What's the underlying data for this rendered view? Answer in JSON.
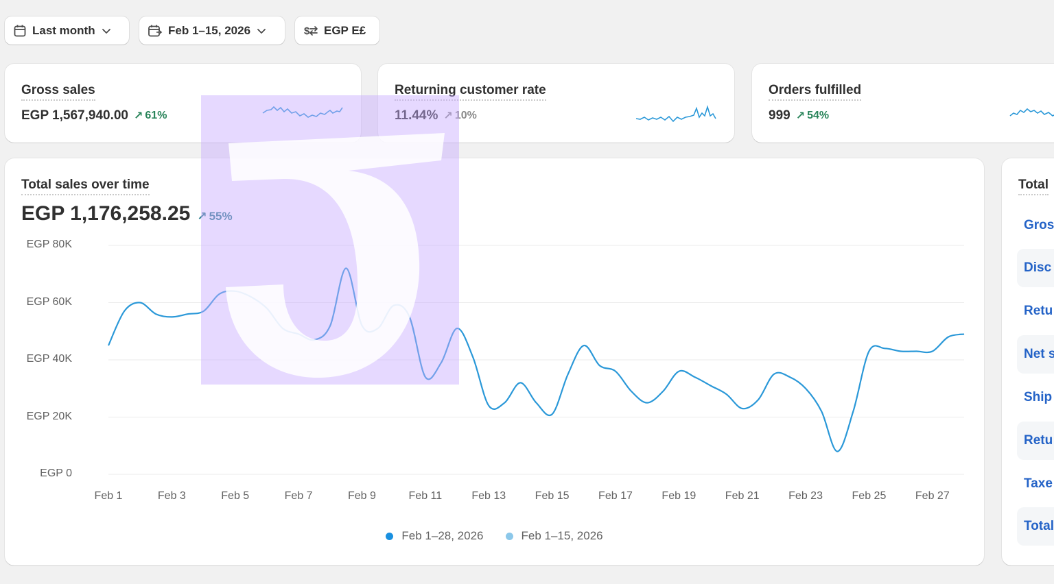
{
  "toolbar": {
    "period_label": "Last month",
    "compare_label": "Feb 1–15, 2026",
    "currency_label": "EGP E£"
  },
  "metrics": [
    {
      "title": "Gross sales",
      "value": "EGP 1,567,940.00",
      "trend": "61%",
      "trend_style": "up"
    },
    {
      "title": "Returning customer rate",
      "value": "11.44%",
      "trend": "10%",
      "trend_style": "muted"
    },
    {
      "title": "Orders fulfilled",
      "value": "999",
      "trend": "54%",
      "trend_style": "up"
    }
  ],
  "sales_chart": {
    "title": "Total sales over time",
    "value": "EGP 1,176,258.25",
    "trend": "55%",
    "legend": [
      {
        "label": "Feb 1–28, 2026",
        "color": "#1990e0"
      },
      {
        "label": "Feb 1–15, 2026",
        "color": "#8cc8ea"
      }
    ]
  },
  "chart_data": {
    "type": "line",
    "title": "Total sales over time",
    "y_tick_labels": [
      "EGP 80K",
      "EGP 60K",
      "EGP 40K",
      "EGP 20K",
      "EGP 0"
    ],
    "x_tick_labels": [
      "Feb 1",
      "Feb 3",
      "Feb 5",
      "Feb 7",
      "Feb 9",
      "Feb 11",
      "Feb 13",
      "Feb 15",
      "Feb 17",
      "Feb 19",
      "Feb 21",
      "Feb 23",
      "Feb 25",
      "Feb 27"
    ],
    "ylim": [
      0,
      80000
    ],
    "grid": true,
    "legend_placement": "bottom",
    "series": [
      {
        "name": "Feb 1–28, 2026",
        "color": "#2a98d8",
        "x": [
          1,
          1.5,
          2,
          2.5,
          3,
          3.5,
          4,
          4.5,
          5,
          5.5,
          6,
          6.5,
          7,
          7.5,
          8,
          8.5,
          9,
          9.5,
          10,
          10.5,
          11,
          11.5,
          12,
          12.5,
          13,
          13.5,
          14,
          14.5,
          15,
          15.5,
          16,
          16.5,
          17,
          17.5,
          18,
          18.5,
          19,
          19.5,
          20,
          20.5,
          21,
          21.5,
          22,
          22.5,
          23,
          23.5,
          24,
          24.5,
          25,
          25.5,
          26,
          26.5,
          27,
          27.5,
          28
        ],
        "values": [
          45000,
          57000,
          60000,
          56000,
          55000,
          56000,
          57000,
          63000,
          64000,
          62000,
          58000,
          51000,
          49000,
          47000,
          52000,
          72000,
          52000,
          51000,
          59000,
          55000,
          34000,
          39000,
          51000,
          41000,
          24000,
          25000,
          32000,
          25000,
          21000,
          35000,
          45000,
          38000,
          36000,
          29000,
          25000,
          29000,
          36000,
          34000,
          31000,
          28000,
          23000,
          26000,
          35000,
          34000,
          30000,
          22000,
          8000,
          22000,
          43000,
          44000,
          43000,
          43000,
          43000,
          48000,
          49000
        ]
      }
    ]
  },
  "breakdown": {
    "title": "Total",
    "rows": [
      "Gros",
      "Disc",
      "Retu",
      "Net s",
      "Ship",
      "Retu",
      "Taxe",
      "Total"
    ]
  }
}
